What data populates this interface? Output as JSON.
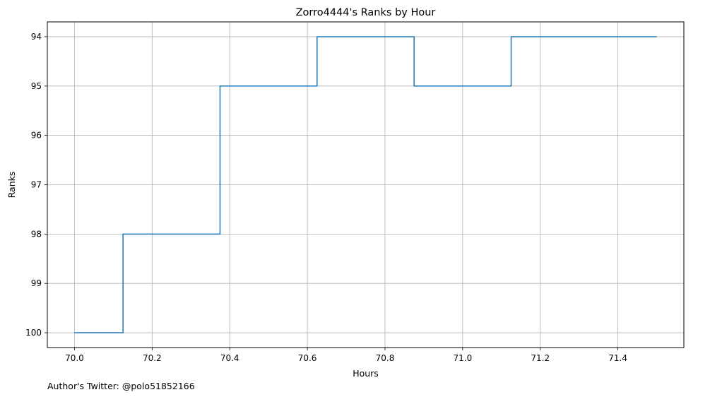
{
  "chart_data": {
    "type": "line",
    "style": "step",
    "title": "Zorro4444's Ranks by Hour",
    "xlabel": "Hours",
    "ylabel": "Ranks",
    "xlim": [
      69.93,
      71.57
    ],
    "ylim": [
      100.3,
      93.7
    ],
    "y_inverted": true,
    "x_ticks": [
      "70.0",
      "70.2",
      "70.4",
      "70.6",
      "70.8",
      "71.0",
      "71.2",
      "71.4"
    ],
    "y_ticks": [
      "94",
      "95",
      "96",
      "97",
      "98",
      "99",
      "100"
    ],
    "grid": true,
    "line_color": "#1f77b4",
    "series": [
      {
        "x": [
          70.0,
          70.125,
          70.125,
          70.375,
          70.375,
          70.625,
          70.625,
          70.875,
          70.875,
          71.125,
          71.125,
          71.5
        ],
        "y": [
          100,
          100,
          98,
          98,
          95,
          95,
          94,
          94,
          95,
          95,
          94,
          94
        ]
      }
    ],
    "footer": "Author's Twitter: @polo51852166"
  }
}
